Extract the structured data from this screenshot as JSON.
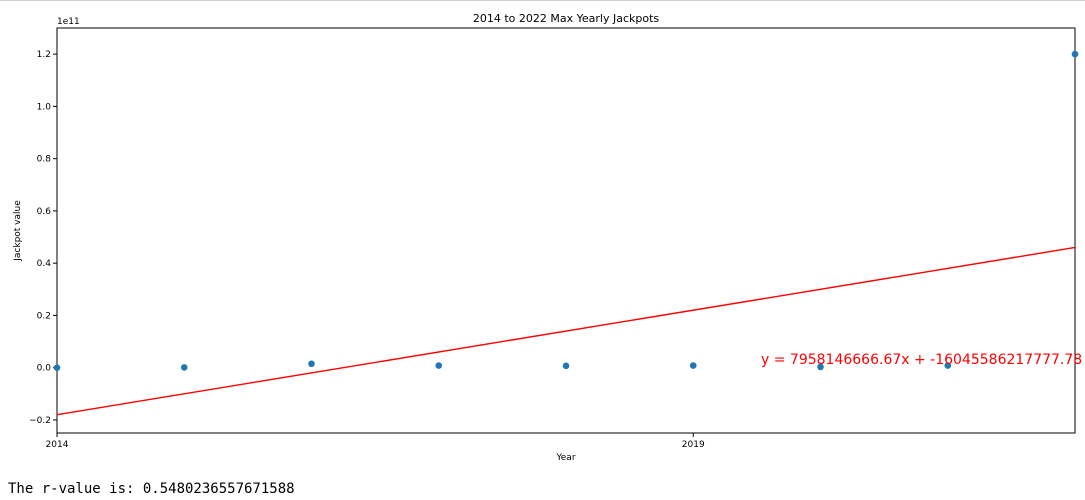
{
  "chart_data": {
    "type": "scatter",
    "title": "2014 to 2022 Max Yearly Jackpots",
    "xlabel": "Year",
    "ylabel": "Jackpot value",
    "y_offset_label": "1e11",
    "x_tick_labels": [
      {
        "value": 2014,
        "label": "2014"
      },
      {
        "value": 2019,
        "label": "2019"
      }
    ],
    "y_tick_labels": [
      {
        "value": -0.2,
        "label": "−0.2"
      },
      {
        "value": 0.0,
        "label": "0.0"
      },
      {
        "value": 0.2,
        "label": "0.2"
      },
      {
        "value": 0.4,
        "label": "0.4"
      },
      {
        "value": 0.6,
        "label": "0.6"
      },
      {
        "value": 0.8,
        "label": "0.8"
      },
      {
        "value": 1.0,
        "label": "1.0"
      },
      {
        "value": 1.2,
        "label": "1.2"
      }
    ],
    "xlim": [
      2014,
      2022
    ],
    "ylim": [
      -0.25,
      1.3
    ],
    "grid": false,
    "points": [
      {
        "x": 2014,
        "y": 0.0
      },
      {
        "x": 2015,
        "y": 0.001
      },
      {
        "x": 2016,
        "y": 0.015
      },
      {
        "x": 2017,
        "y": 0.008
      },
      {
        "x": 2018,
        "y": 0.007
      },
      {
        "x": 2019,
        "y": 0.008
      },
      {
        "x": 2020,
        "y": 0.003
      },
      {
        "x": 2021,
        "y": 0.008
      },
      {
        "x": 2022,
        "y": 1.2
      }
    ],
    "regression_line": {
      "x": [
        2014,
        2022
      ],
      "y": [
        -0.18,
        0.46
      ]
    },
    "annotation": "y = 7958146666.67x + -16045586217777.78",
    "colors": {
      "points": "#1f77b4",
      "line": "#ff0000",
      "annotation": "#ff0000"
    }
  },
  "output": {
    "r_value_text": "The r-value is: 0.5480236557671588"
  }
}
